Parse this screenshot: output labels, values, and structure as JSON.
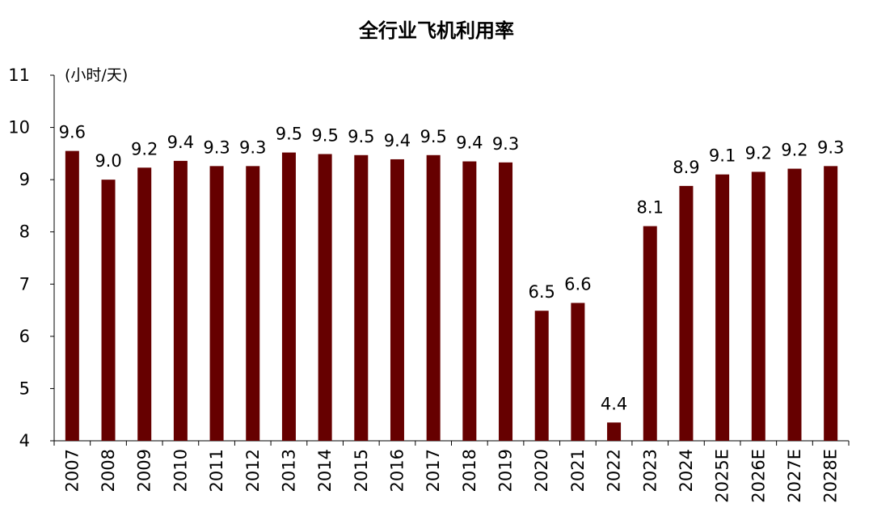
{
  "chart_data": {
    "type": "bar",
    "title": "全行业飞机利用率",
    "unit_label": "(小时/天)",
    "xlabel": "",
    "ylabel": "",
    "ylim": [
      4,
      11
    ],
    "yticks": [
      "4",
      "5",
      "6",
      "7",
      "8",
      "9",
      "10",
      "11"
    ],
    "categories": [
      "2007",
      "2008",
      "2009",
      "2010",
      "2011",
      "2012",
      "2013",
      "2014",
      "2015",
      "2016",
      "2017",
      "2018",
      "2019",
      "2020",
      "2021",
      "2022",
      "2023",
      "2024",
      "2025E",
      "2026E",
      "2027E",
      "2028E"
    ],
    "values": [
      9.55,
      9.0,
      9.23,
      9.36,
      9.26,
      9.26,
      9.52,
      9.49,
      9.47,
      9.39,
      9.47,
      9.35,
      9.33,
      6.49,
      6.64,
      4.35,
      8.11,
      8.88,
      9.1,
      9.15,
      9.21,
      9.26
    ],
    "data_labels": [
      "9.6",
      "9.0",
      "9.2",
      "9.4",
      "9.3",
      "9.3",
      "9.5",
      "9.5",
      "9.5",
      "9.4",
      "9.5",
      "9.4",
      "9.3",
      "6.5",
      "6.6",
      "4.4",
      "8.1",
      "8.9",
      "9.1",
      "9.2",
      "9.2",
      "9.3"
    ],
    "grid": false,
    "legend": "none",
    "bar_color": "#660000"
  }
}
